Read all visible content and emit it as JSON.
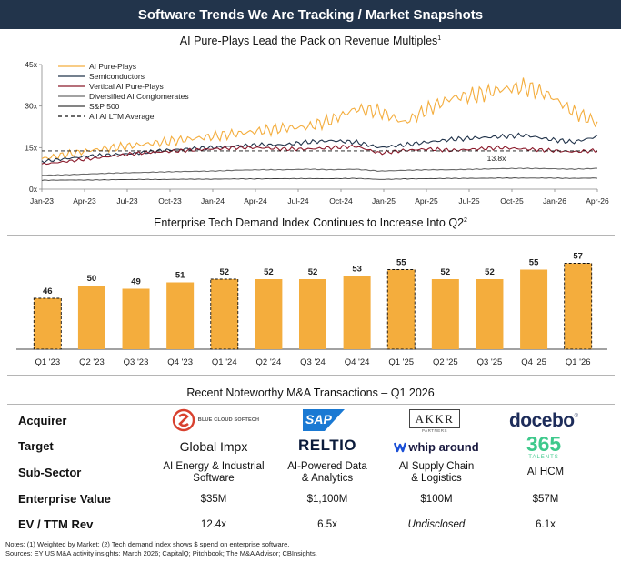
{
  "header": {
    "title": "Software Trends We Are Tracking / Market Snapshots"
  },
  "line_section": {
    "title": "AI Pure-Plays Lead the Pack on Revenue Multiples",
    "footnote_mark": "1"
  },
  "bar_section": {
    "title": "Enterprise Tech Demand Index Continues to Increase Into Q2",
    "footnote_mark": "2"
  },
  "ma_section": {
    "title": "Recent Noteworthy M&A Transactions – Q1 2026"
  },
  "chart_data": [
    {
      "type": "line",
      "title": "AI Pure-Plays Lead the Pack on Revenue Multiples",
      "x_ticks": [
        "Jan-23",
        "Apr-23",
        "Jul-23",
        "Oct-23",
        "Jan-24",
        "Apr-24",
        "Jul-24",
        "Oct-24",
        "Jan-25",
        "Apr-25",
        "Jul-25",
        "Oct-25",
        "Jan-26",
        "Apr-26"
      ],
      "y_ticks": [
        "0x",
        "15x",
        "30x",
        "45x"
      ],
      "ylim": [
        0,
        45
      ],
      "legend_position": "top-left",
      "series": [
        {
          "name": "AI Pure-Plays",
          "color": "#f4ad3d",
          "width": 1.1,
          "values": [
            11,
            12.5,
            14,
            15,
            16,
            17,
            18,
            19,
            20,
            21,
            22,
            22.5,
            25,
            29,
            28,
            24,
            29,
            33,
            34,
            36,
            37,
            34,
            28,
            24
          ]
        },
        {
          "name": "Semiconductors",
          "color": "#22344b",
          "width": 1.1,
          "values": [
            10,
            11,
            12,
            12.5,
            13,
            14,
            14.5,
            15,
            15.5,
            16,
            16,
            17,
            17.5,
            17,
            15,
            16,
            17,
            18,
            18.5,
            19,
            19.5,
            18,
            17,
            19
          ]
        },
        {
          "name": "Vertical AI Pure-Plays",
          "color": "#8b1a2b",
          "width": 1.1,
          "values": [
            9,
            10,
            11,
            12,
            13,
            13.5,
            14,
            14.5,
            15,
            15,
            14.5,
            14.5,
            15,
            15.5,
            13,
            14,
            14.5,
            14,
            14.5,
            15,
            14.5,
            14,
            13.5,
            14
          ]
        },
        {
          "name": "Diversified AI Conglomerates",
          "color": "#6b6b6b",
          "width": 1.1,
          "values": [
            5,
            5.2,
            5.5,
            5.8,
            6,
            6.2,
            6.4,
            6.5,
            6.8,
            7,
            7,
            7.2,
            7,
            7.2,
            6.5,
            6.8,
            7,
            7,
            7.2,
            7.4,
            7.5,
            7.4,
            7.2,
            7.5
          ]
        },
        {
          "name": "S&P 500",
          "color": "#3a3a3a",
          "width": 0.9,
          "values": [
            3.2,
            3.3,
            3.3,
            3.4,
            3.5,
            3.5,
            3.6,
            3.6,
            3.7,
            3.7,
            3.8,
            3.8,
            3.8,
            3.9,
            3.5,
            3.7,
            3.8,
            3.9,
            3.9,
            4,
            4,
            4,
            3.9,
            4
          ]
        }
      ],
      "reference_line": {
        "name": "All AI LTM Average",
        "value": 13.8,
        "label": "13.8x",
        "color": "#111111"
      }
    },
    {
      "type": "bar",
      "title": "Enterprise Tech Demand Index Continues to Increase Into Q2",
      "categories": [
        "Q1 '23",
        "Q2 '23",
        "Q3 '23",
        "Q4 '23",
        "Q1 '24",
        "Q2 '24",
        "Q3 '24",
        "Q4 '24",
        "Q1 '25",
        "Q2 '25",
        "Q3 '25",
        "Q4 '25",
        "Q1 '26"
      ],
      "values": [
        46,
        50,
        49,
        51,
        52,
        52,
        52,
        53,
        55,
        52,
        52,
        55,
        57
      ],
      "dashed_outline": [
        true,
        false,
        false,
        false,
        true,
        false,
        false,
        false,
        true,
        false,
        false,
        false,
        true
      ],
      "bar_color": "#f4ad3d",
      "ylim": [
        30,
        60
      ]
    }
  ],
  "ma_table": {
    "row_labels": {
      "acquirer": "Acquirer",
      "target": "Target",
      "sub_sector": "Sub-Sector",
      "enterprise_value": "Enterprise Value",
      "ev_ttm_rev": "EV / TTM Rev"
    },
    "deals": [
      {
        "acquirer": "BLUE CLOUD SOFTECH",
        "target": "Global Impx",
        "sub_sector_line1": "AI Energy & Industrial",
        "sub_sector_line2": "Software",
        "enterprise_value": "$35M",
        "ev_ttm_rev": "12.4x"
      },
      {
        "acquirer": "SAP",
        "target": "RELTIO",
        "sub_sector_line1": "AI-Powered Data",
        "sub_sector_line2": "& Analytics",
        "enterprise_value": "$1,100M",
        "ev_ttm_rev": "6.5x"
      },
      {
        "acquirer": "AKKR",
        "acquirer_sub": "PARTNERS",
        "target": "whip around",
        "sub_sector_line1": "AI Supply Chain",
        "sub_sector_line2": "& Logistics",
        "enterprise_value": "$100M",
        "ev_ttm_rev": "Undisclosed"
      },
      {
        "acquirer": "docebo",
        "target": "365",
        "target_sub": "TALENTS",
        "sub_sector_line1": "AI HCM",
        "sub_sector_line2": "",
        "enterprise_value": "$57M",
        "ev_ttm_rev": "6.1x"
      }
    ]
  },
  "notes": {
    "line1": "Notes: (1) Weighted by Market; (2) Tech demand index shows $ spend on enterprise software.",
    "line2": "Sources: EY US M&A activity insights: March 2026; CapitalQ; Pitchbook; The M&A Advisor; CBInsights."
  },
  "colors": {
    "header_bg": "#22344b",
    "accent_orange": "#f4ad3d",
    "sap_blue": "#1a79d3",
    "docebo_navy": "#1d2c5a",
    "talents_green": "#3ec98c",
    "whip_blue": "#1a4fd6",
    "bluecloud_red": "#d8412f"
  }
}
